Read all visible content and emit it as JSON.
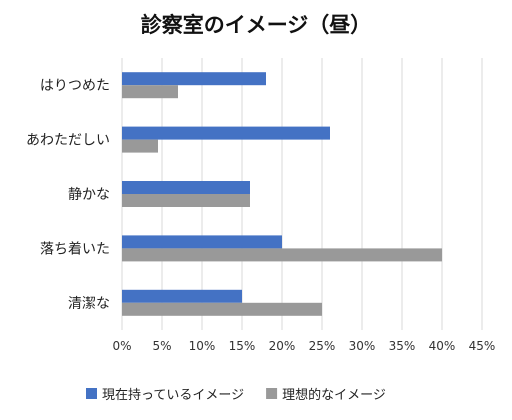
{
  "chart_data": {
    "type": "bar",
    "orientation": "horizontal",
    "title": "診察室のイメージ（昼）",
    "categories": [
      "はりつめた",
      "あわただしい",
      "静かな",
      "落ち着いた",
      "清潔な"
    ],
    "series": [
      {
        "name": "現在持っているイメージ",
        "color": "#4472c4",
        "values": [
          18,
          26,
          16,
          20,
          15
        ]
      },
      {
        "name": "理想的なイメージ",
        "color": "#999999",
        "values": [
          7,
          4.5,
          16,
          40,
          25
        ]
      }
    ],
    "xlim": [
      0,
      45
    ],
    "xticks": [
      0,
      5,
      10,
      15,
      20,
      25,
      30,
      35,
      40,
      45
    ],
    "tick_suffix": "%",
    "grid": true,
    "legend": "bottom"
  }
}
